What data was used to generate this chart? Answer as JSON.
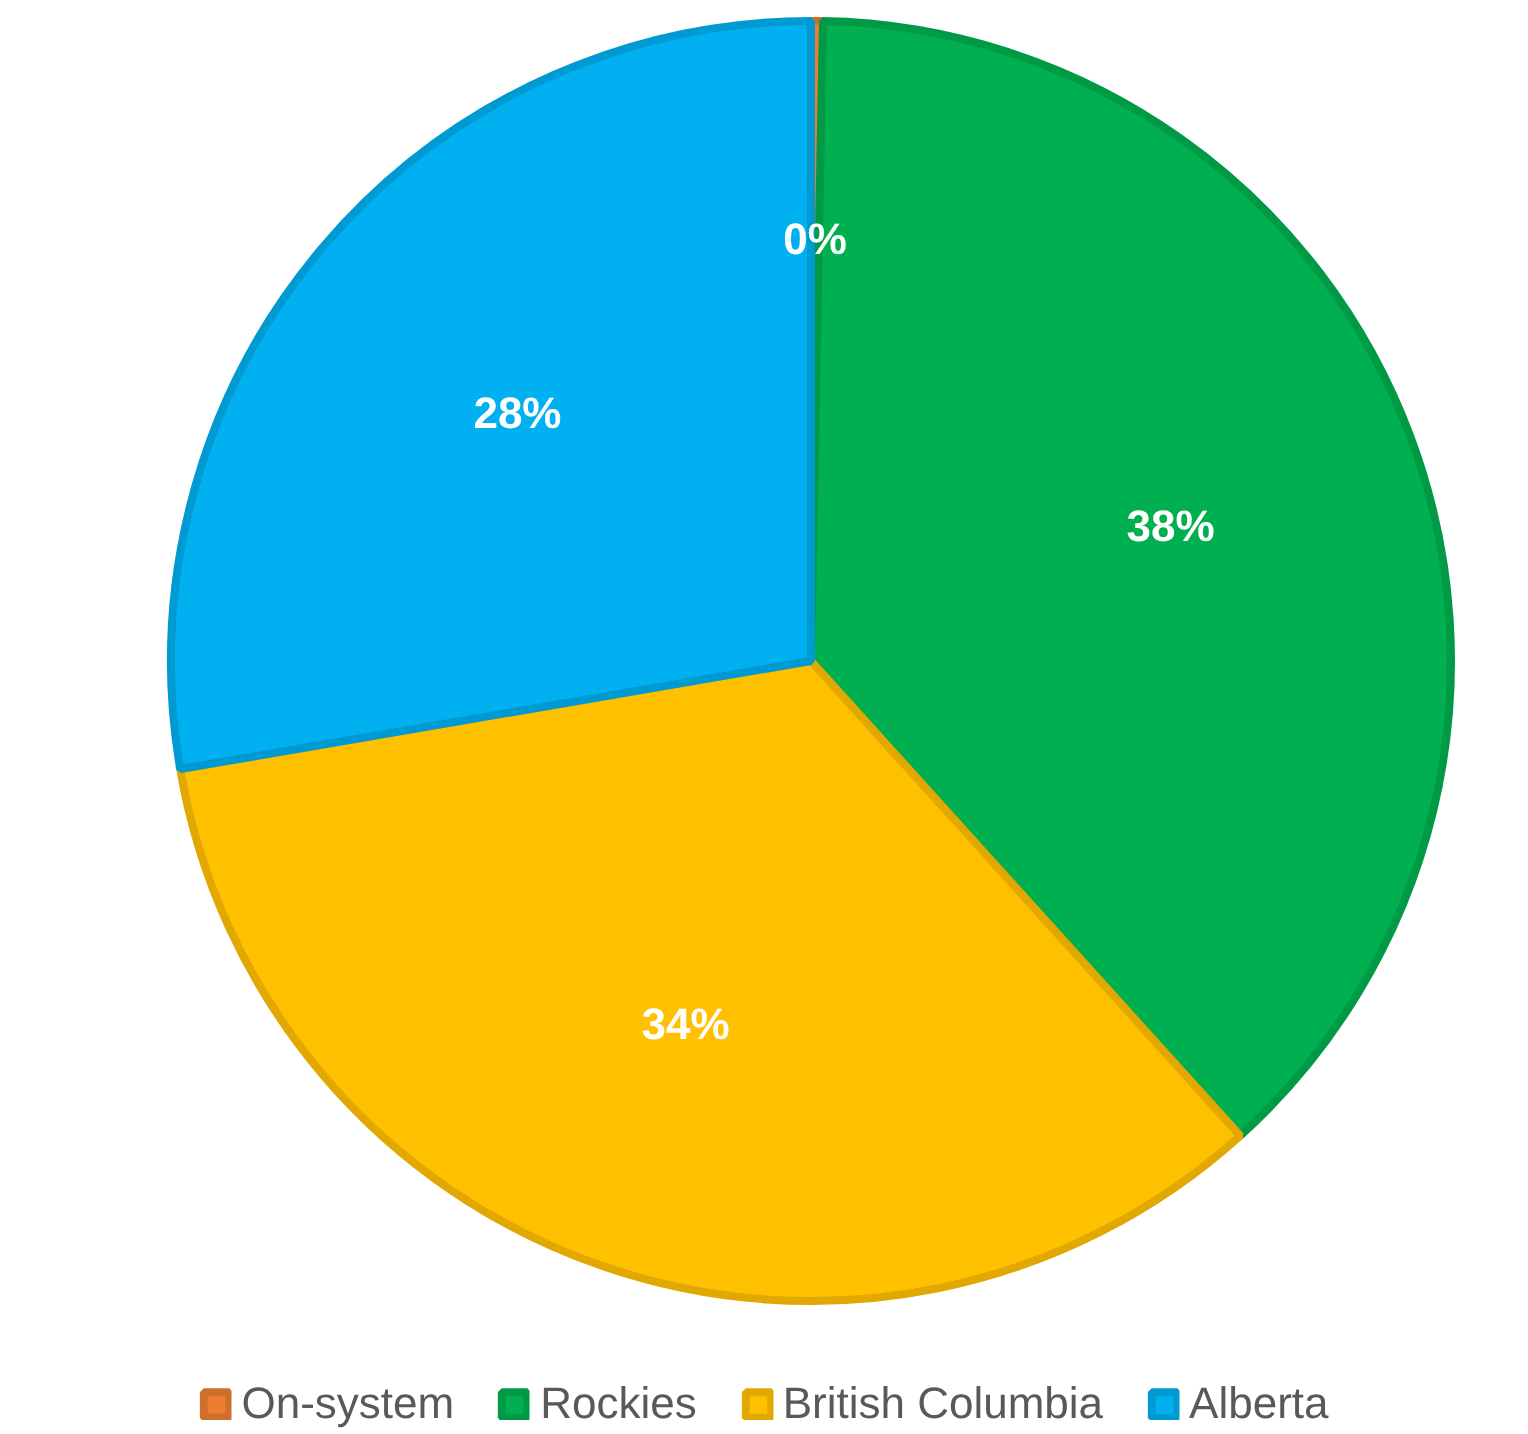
{
  "chart_data": {
    "type": "pie",
    "categories": [
      "On-system",
      "Rockies",
      "British Columbia",
      "Alberta"
    ],
    "values": [
      0.3,
      38,
      34,
      27.7
    ],
    "value_labels": [
      "0%",
      "38%",
      "34%",
      "28%"
    ],
    "colors": [
      "#ed7d31",
      "#00b050",
      "#ffc000",
      "#00b0f0"
    ],
    "legend": "bottom"
  }
}
